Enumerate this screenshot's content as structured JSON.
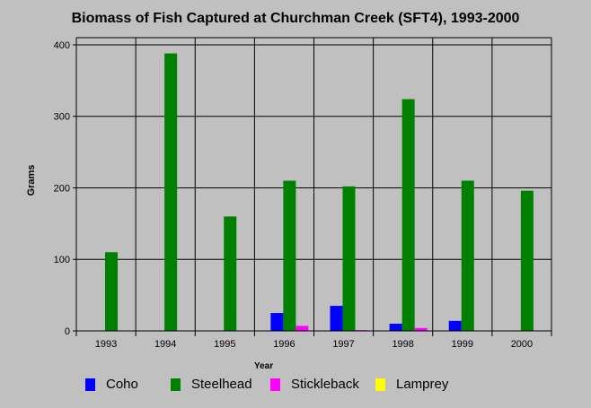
{
  "chart_data": {
    "type": "bar",
    "title": "Biomass of Fish Captured at Churchman Creek (SFT4), 1993-2000",
    "xlabel": "Year",
    "ylabel": "Grams",
    "categories": [
      "1993",
      "1994",
      "1995",
      "1996",
      "1997",
      "1998",
      "1999",
      "2000"
    ],
    "ylim": [
      0,
      410
    ],
    "yticks": [
      0,
      100,
      200,
      300,
      400
    ],
    "grid": true,
    "legend_position": "bottom",
    "series": [
      {
        "name": "Coho",
        "color": "#0000ff",
        "values": [
          0,
          0,
          0,
          25,
          35,
          10,
          14,
          0
        ]
      },
      {
        "name": "Steelhead",
        "color": "#008000",
        "values": [
          110,
          388,
          160,
          210,
          202,
          324,
          210,
          196
        ]
      },
      {
        "name": "Stickleback",
        "color": "#ff00ff",
        "values": [
          0,
          0,
          0,
          7,
          1,
          4,
          0,
          0
        ]
      },
      {
        "name": "Lamprey",
        "color": "#ffff00",
        "values": [
          0,
          0,
          0,
          0,
          0,
          0,
          0,
          0
        ]
      }
    ]
  }
}
